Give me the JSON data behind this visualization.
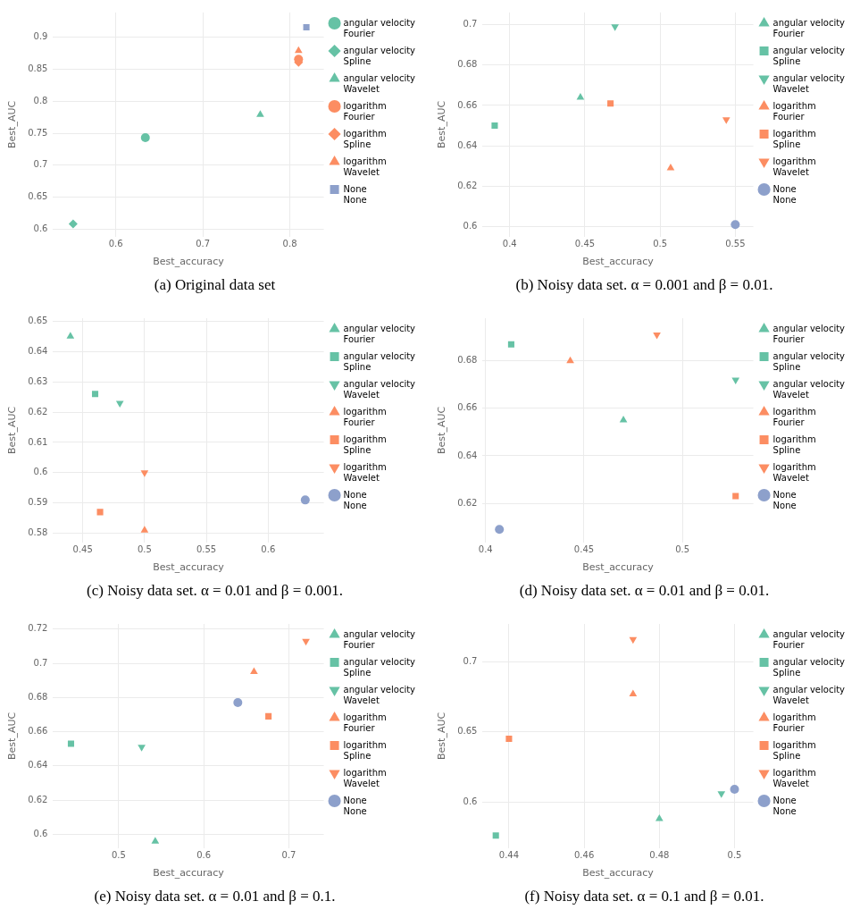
{
  "chart_data": [
    {
      "type": "scatter",
      "title": "(a) Original data set",
      "xlabel": "Best_accuracy",
      "ylabel": "Best_AUC",
      "xlim": [
        0.528,
        0.839
      ],
      "ylim": [
        0.588,
        0.939
      ],
      "xticks": [
        0.6,
        0.7,
        0.8
      ],
      "yticks": [
        0.6,
        0.65,
        0.7,
        0.75,
        0.8,
        0.85,
        0.9
      ],
      "grid": true,
      "legend": "top right",
      "series": [
        {
          "name": "angular velocity\nFourier",
          "color": "#66c2a5",
          "marker": "circle",
          "x": [
            0.634
          ],
          "values": [
            0.743
          ]
        },
        {
          "name": "angular velocity\nSpline",
          "color": "#66c2a5",
          "marker": "diamond",
          "x": [
            0.551
          ],
          "values": [
            0.608
          ]
        },
        {
          "name": "angular velocity\nWavelet",
          "color": "#66c2a5",
          "marker": "triangle",
          "x": [
            0.766
          ],
          "values": [
            0.779
          ]
        },
        {
          "name": "logarithm\nFourier",
          "color": "#fc8d62",
          "marker": "circle",
          "x": [
            0.81
          ],
          "values": [
            0.866
          ]
        },
        {
          "name": "logarithm\nSpline",
          "color": "#fc8d62",
          "marker": "diamond",
          "x": [
            0.81
          ],
          "values": [
            0.861
          ]
        },
        {
          "name": "logarithm\nWavelet",
          "color": "#fc8d62",
          "marker": "triangle",
          "x": [
            0.81
          ],
          "values": [
            0.879
          ]
        },
        {
          "name": "None\nNone",
          "color": "#8da0cb",
          "marker": "square",
          "x": [
            0.819
          ],
          "values": [
            0.916
          ]
        }
      ]
    },
    {
      "type": "scatter",
      "title": "(b) Noisy data set. α = 0.001 and β = 0.01.",
      "xlabel": "Best_accuracy",
      "ylabel": "Best_AUC",
      "xlim": [
        0.382,
        0.562
      ],
      "ylim": [
        0.595,
        0.706
      ],
      "xticks": [
        0.4,
        0.45,
        0.5,
        0.55
      ],
      "yticks": [
        0.6,
        0.62,
        0.64,
        0.66,
        0.68,
        0.7
      ],
      "grid": true,
      "legend": "top right",
      "series": [
        {
          "name": "angular velocity\nFourier",
          "color": "#66c2a5",
          "marker": "triangle",
          "x": [
            0.447
          ],
          "values": [
            0.664
          ]
        },
        {
          "name": "angular velocity\nSpline",
          "color": "#66c2a5",
          "marker": "square",
          "x": [
            0.39
          ],
          "values": [
            0.65
          ]
        },
        {
          "name": "angular velocity\nWavelet",
          "color": "#66c2a5",
          "marker": "triangle",
          "x": [
            0.47
          ],
          "values": [
            0.699
          ]
        },
        {
          "name": "logarithm\nFourier",
          "color": "#fc8d62",
          "marker": "triangle",
          "x": [
            0.507
          ],
          "values": [
            0.629
          ]
        },
        {
          "name": "logarithm\nSpline",
          "color": "#fc8d62",
          "marker": "square",
          "x": [
            0.467
          ],
          "values": [
            0.661
          ]
        },
        {
          "name": "logarithm\nWavelet",
          "color": "#fc8d62",
          "marker": "triangle",
          "x": [
            0.544
          ],
          "values": [
            0.653
          ]
        },
        {
          "name": "None\nNone",
          "color": "#8da0cb",
          "marker": "circle",
          "x": [
            0.55
          ],
          "values": [
            0.601
          ]
        }
      ]
    },
    {
      "type": "scatter",
      "title": "(c) Noisy data set. α = 0.01 and β = 0.001.",
      "xlabel": "Best_accuracy",
      "ylabel": "Best_AUC",
      "xlim": [
        0.426,
        0.645
      ],
      "ylim": [
        0.577,
        0.651
      ],
      "xticks": [
        0.45,
        0.5,
        0.55,
        0.6
      ],
      "yticks": [
        0.58,
        0.59,
        0.6,
        0.61,
        0.62,
        0.63,
        0.64,
        0.65
      ],
      "grid": true,
      "legend": "top right",
      "series": [
        {
          "name": "angular velocity\nFourier",
          "color": "#66c2a5",
          "marker": "triangle",
          "x": [
            0.44
          ],
          "values": [
            0.645
          ]
        },
        {
          "name": "angular velocity\nSpline",
          "color": "#66c2a5",
          "marker": "square",
          "x": [
            0.46
          ],
          "values": [
            0.626
          ]
        },
        {
          "name": "angular velocity\nWavelet",
          "color": "#66c2a5",
          "marker": "triangle",
          "x": [
            0.48
          ],
          "values": [
            0.623
          ]
        },
        {
          "name": "logarithm\nFourier",
          "color": "#fc8d62",
          "marker": "triangle",
          "x": [
            0.5
          ],
          "values": [
            0.581
          ]
        },
        {
          "name": "logarithm\nSpline",
          "color": "#fc8d62",
          "marker": "square",
          "x": [
            0.464
          ],
          "values": [
            0.587
          ]
        },
        {
          "name": "logarithm\nWavelet",
          "color": "#fc8d62",
          "marker": "triangle",
          "x": [
            0.5
          ],
          "values": [
            0.6
          ]
        },
        {
          "name": "None\nNone",
          "color": "#8da0cb",
          "marker": "circle",
          "x": [
            0.63
          ],
          "values": [
            0.591
          ]
        }
      ]
    },
    {
      "type": "scatter",
      "title": "(d) Noisy data set. α = 0.01 and β = 0.01.",
      "xlabel": "Best_accuracy",
      "ylabel": "Best_AUC",
      "xlim": [
        0.3985,
        0.536
      ],
      "ylim": [
        0.6035,
        0.698
      ],
      "xticks": [
        0.4,
        0.45,
        0.5
      ],
      "yticks": [
        0.62,
        0.64,
        0.66,
        0.68
      ],
      "grid": true,
      "legend": "top right",
      "series": [
        {
          "name": "angular velocity\nFourier",
          "color": "#66c2a5",
          "marker": "triangle",
          "x": [
            0.47
          ],
          "values": [
            0.655
          ]
        },
        {
          "name": "angular velocity\nSpline",
          "color": "#66c2a5",
          "marker": "square",
          "x": [
            0.413
          ],
          "values": [
            0.687
          ]
        },
        {
          "name": "angular velocity\nWavelet",
          "color": "#66c2a5",
          "marker": "triangle",
          "x": [
            0.527
          ],
          "values": [
            0.672
          ]
        },
        {
          "name": "logarithm\nFourier",
          "color": "#fc8d62",
          "marker": "triangle",
          "x": [
            0.443
          ],
          "values": [
            0.68
          ]
        },
        {
          "name": "logarithm\nSpline",
          "color": "#fc8d62",
          "marker": "square",
          "x": [
            0.527
          ],
          "values": [
            0.623
          ]
        },
        {
          "name": "logarithm\nWavelet",
          "color": "#fc8d62",
          "marker": "triangle",
          "x": [
            0.487
          ],
          "values": [
            0.691
          ]
        },
        {
          "name": "None\nNone",
          "color": "#8da0cb",
          "marker": "circle",
          "x": [
            0.407
          ],
          "values": [
            0.609
          ]
        }
      ]
    },
    {
      "type": "scatter",
      "title": "(e) Noisy data set. α = 0.01 and β = 0.1.",
      "xlabel": "Best_accuracy",
      "ylabel": "Best_AUC",
      "xlim": [
        0.423,
        0.741
      ],
      "ylim": [
        0.592,
        0.723
      ],
      "xticks": [
        0.5,
        0.6,
        0.7
      ],
      "yticks": [
        0.6,
        0.62,
        0.64,
        0.66,
        0.68,
        0.7,
        0.72
      ],
      "grid": true,
      "legend": "top right",
      "series": [
        {
          "name": "angular velocity\nFourier",
          "color": "#66c2a5",
          "marker": "triangle",
          "x": [
            0.543
          ],
          "values": [
            0.596
          ]
        },
        {
          "name": "angular velocity\nSpline",
          "color": "#66c2a5",
          "marker": "square",
          "x": [
            0.444
          ],
          "values": [
            0.653
          ]
        },
        {
          "name": "angular velocity\nWavelet",
          "color": "#66c2a5",
          "marker": "triangle",
          "x": [
            0.527
          ],
          "values": [
            0.651
          ]
        },
        {
          "name": "logarithm\nFourier",
          "color": "#fc8d62",
          "marker": "triangle",
          "x": [
            0.659
          ],
          "values": [
            0.695
          ]
        },
        {
          "name": "logarithm\nSpline",
          "color": "#fc8d62",
          "marker": "square",
          "x": [
            0.676
          ],
          "values": [
            0.669
          ]
        },
        {
          "name": "logarithm\nWavelet",
          "color": "#fc8d62",
          "marker": "triangle",
          "x": [
            0.72
          ],
          "values": [
            0.713
          ]
        },
        {
          "name": "None\nNone",
          "color": "#8da0cb",
          "marker": "circle",
          "x": [
            0.64
          ],
          "values": [
            0.677
          ]
        }
      ]
    },
    {
      "type": "scatter",
      "title": "(f) Noisy data set. α = 0.1 and β = 0.01.",
      "xlabel": "Best_accuracy",
      "ylabel": "Best_AUC",
      "xlim": [
        0.433,
        0.505
      ],
      "ylim": [
        0.567,
        0.727
      ],
      "xticks": [
        0.44,
        0.46,
        0.48,
        0.5
      ],
      "yticks": [
        0.6,
        0.65,
        0.7
      ],
      "grid": true,
      "legend": "top right",
      "series": [
        {
          "name": "angular velocity\nFourier",
          "color": "#66c2a5",
          "marker": "triangle",
          "x": [
            0.48
          ],
          "values": [
            0.588
          ]
        },
        {
          "name": "angular velocity\nSpline",
          "color": "#66c2a5",
          "marker": "square",
          "x": [
            0.4365
          ],
          "values": [
            0.576
          ]
        },
        {
          "name": "angular velocity\nWavelet",
          "color": "#66c2a5",
          "marker": "triangle",
          "x": [
            0.4965
          ],
          "values": [
            0.606
          ]
        },
        {
          "name": "logarithm\nFourier",
          "color": "#fc8d62",
          "marker": "triangle",
          "x": [
            0.473
          ],
          "values": [
            0.677
          ]
        },
        {
          "name": "logarithm\nSpline",
          "color": "#fc8d62",
          "marker": "square",
          "x": [
            0.44
          ],
          "values": [
            0.645
          ]
        },
        {
          "name": "logarithm\nWavelet",
          "color": "#fc8d62",
          "marker": "triangle",
          "x": [
            0.473
          ],
          "values": [
            0.716
          ]
        },
        {
          "name": "None\nNone",
          "color": "#8da0cb",
          "marker": "circle",
          "x": [
            0.5
          ],
          "values": [
            0.609
          ]
        }
      ]
    }
  ]
}
